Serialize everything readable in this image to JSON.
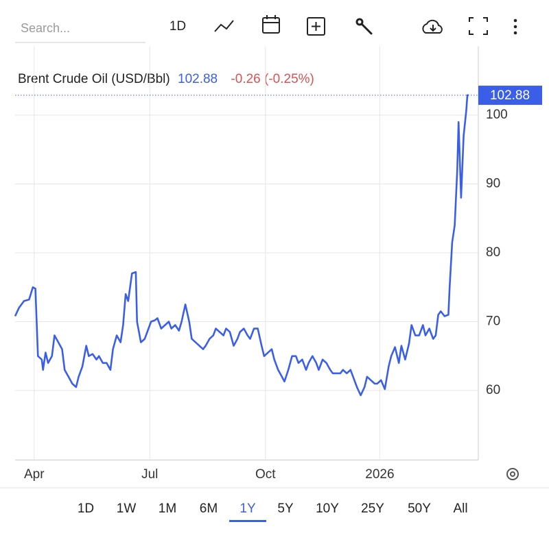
{
  "toolbar": {
    "search_placeholder": "Search...",
    "interval": "1D"
  },
  "chart_data": {
    "type": "line",
    "title": "Brent Crude Oil (USD/Bbl)",
    "last_price": 102.88,
    "change": "-0.26 (-0.25%)",
    "series": [
      {
        "name": "Brent Crude Oil (USD/Bbl)",
        "color": "#3b5ee8",
        "x": [
          0,
          3,
          7,
          11,
          14,
          16,
          18,
          21,
          22,
          24,
          26,
          29,
          31,
          34,
          37,
          39,
          42,
          45,
          48,
          50,
          53,
          56,
          58,
          61,
          64,
          66,
          69,
          72,
          75,
          77,
          80,
          83,
          85,
          87,
          89,
          92,
          95,
          96,
          99,
          102,
          104,
          107,
          110,
          112,
          115,
          118,
          121,
          123,
          126,
          129,
          131,
          134,
          137,
          139,
          142,
          145,
          148,
          150,
          153,
          156,
          158,
          161,
          164,
          166,
          169,
          172,
          175,
          177,
          180,
          183,
          185,
          188,
          191,
          194,
          196,
          199,
          202,
          204,
          207,
          210,
          212,
          215,
          218,
          221,
          223,
          226,
          229,
          231,
          234,
          237,
          239,
          242,
          245,
          248,
          250,
          253,
          256,
          258,
          261,
          264,
          266,
          269,
          272,
          275,
          277,
          280,
          283,
          285,
          288,
          291,
          294,
          296,
          299,
          302,
          304,
          307,
          310,
          312,
          315,
          318,
          321,
          323,
          326,
          329,
          331,
          333,
          335,
          338,
          341,
          342,
          344,
          346,
          348,
          349,
          351,
          353,
          355,
          356,
          357
        ],
        "values": [
          70.8,
          72,
          73,
          73.2,
          75,
          74.8,
          65,
          64.5,
          63,
          65.5,
          64,
          65,
          68,
          67,
          66,
          63,
          62,
          61,
          60.5,
          62,
          63.5,
          66.5,
          65,
          65.3,
          64.5,
          65,
          64,
          64,
          63,
          66,
          68,
          67,
          69.5,
          74,
          73,
          77,
          77.2,
          70,
          67,
          67.5,
          68.5,
          70,
          70.2,
          70.5,
          69,
          69.5,
          70,
          69,
          69.5,
          68.7,
          70,
          72.5,
          70,
          67.5,
          67,
          66.5,
          66,
          66.5,
          67.5,
          68,
          69,
          68.5,
          68,
          69,
          68.5,
          66.5,
          67.5,
          68.5,
          69,
          68,
          67.5,
          69,
          69,
          66.5,
          65,
          65.5,
          66,
          64.5,
          63,
          62,
          61.3,
          63,
          65,
          65,
          64,
          64.5,
          63,
          64,
          65,
          64,
          63,
          64.5,
          64,
          63,
          62.5,
          62.5,
          62.5,
          63,
          62.5,
          63,
          62,
          60.5,
          59.3,
          60.5,
          62,
          61.5,
          61,
          61,
          61.5,
          60.2,
          63.5,
          65,
          66.3,
          64,
          66.5,
          64.5,
          66.8,
          69.5,
          68,
          68,
          69.5,
          68,
          69,
          67.5,
          68,
          71,
          71.5,
          70.8,
          71,
          75,
          81.5,
          84,
          92,
          99,
          88,
          97,
          100.5,
          102.9,
          102.88
        ]
      }
    ],
    "xlim": [
      0,
      357
    ],
    "xticks": [
      {
        "value": 15,
        "label": "Apr"
      },
      {
        "value": 106,
        "label": "Jul"
      },
      {
        "value": 197,
        "label": "Oct"
      },
      {
        "value": 287,
        "label": "2026"
      }
    ],
    "ylim": [
      50,
      110
    ],
    "yticks": [
      60,
      70,
      80,
      90,
      100
    ],
    "grid": true
  },
  "ranges": {
    "items": [
      "1D",
      "1W",
      "1M",
      "6M",
      "1Y",
      "5Y",
      "10Y",
      "25Y",
      "50Y",
      "All"
    ],
    "selected": 4
  }
}
